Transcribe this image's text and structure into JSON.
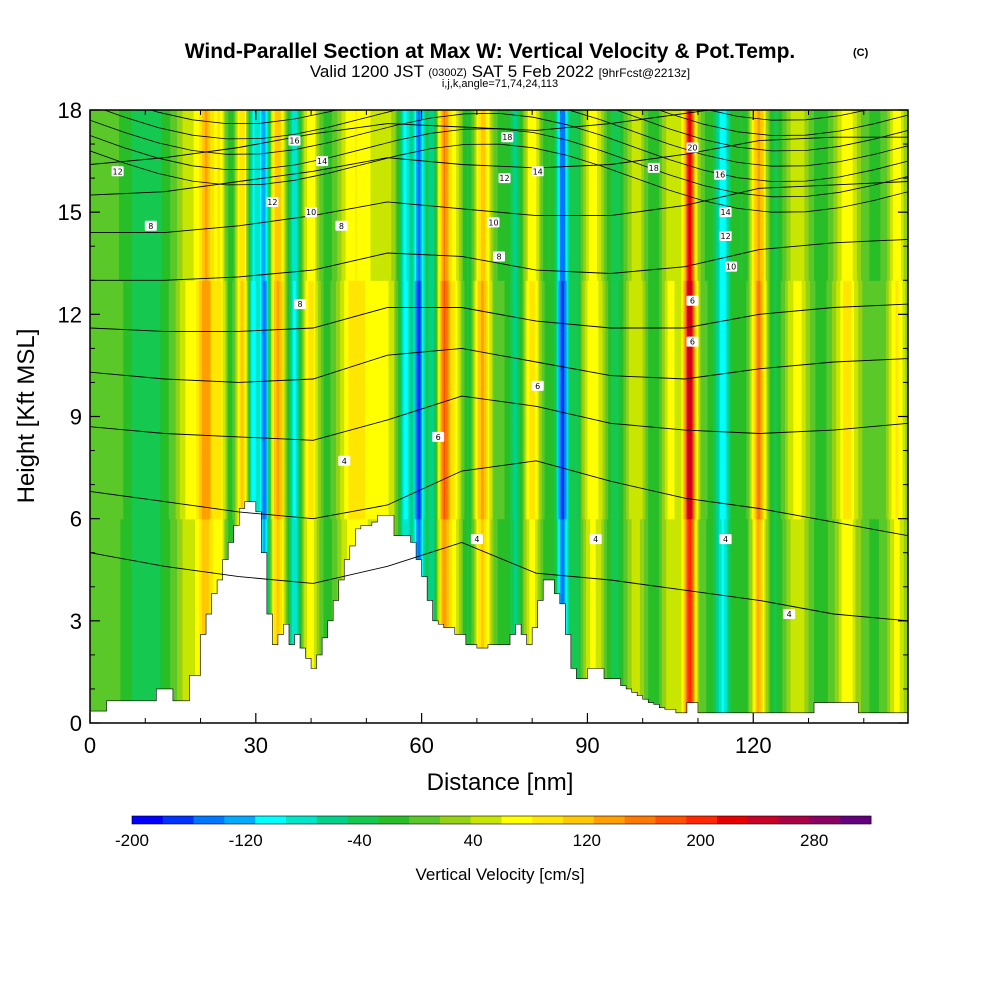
{
  "chart_data": {
    "type": "heatmap",
    "title": "Wind-Parallel Section at Max W: Vertical Velocity & Pot.Temp.",
    "title_mark": "(C)",
    "subtitle": {
      "valid_main": "Valid 1200 JST",
      "utc": "(0300Z)",
      "date": "SAT 5 Feb 2022",
      "fcst": "[9hrFcst@2213z]"
    },
    "subtitle2": "i,j,k,angle=71,74,24,113",
    "xlabel": "Distance [nm]",
    "ylabel": "Height [Kft MSL]",
    "xlim": [
      0,
      148
    ],
    "ylim": [
      0,
      18
    ],
    "x_ticks": [
      0,
      30,
      60,
      90,
      120
    ],
    "y_ticks": [
      0,
      3,
      6,
      9,
      12,
      15,
      18
    ],
    "colorbar": {
      "label": "Vertical Velocity [cm/s]",
      "range": [
        -200,
        320
      ],
      "tick_labels": [
        -200,
        -120,
        -40,
        40,
        120,
        200,
        280
      ],
      "colors": [
        "#0000ff",
        "#0033ff",
        "#0077ff",
        "#00aaff",
        "#00ffff",
        "#00e6c8",
        "#00d28c",
        "#14c850",
        "#28be28",
        "#5ac828",
        "#96d214",
        "#c8e600",
        "#ffff00",
        "#ffe600",
        "#ffc800",
        "#ffa000",
        "#ff7800",
        "#ff5000",
        "#ff2800",
        "#e60000",
        "#c80028",
        "#aa0046",
        "#8c0064",
        "#64007d"
      ]
    },
    "terrain": [
      [
        0,
        0.35
      ],
      [
        3,
        0.65
      ],
      [
        11,
        0.65
      ],
      [
        12,
        1.0
      ],
      [
        14,
        1.0
      ],
      [
        15,
        0.65
      ],
      [
        17,
        0.65
      ],
      [
        18,
        1.4
      ],
      [
        19,
        1.4
      ],
      [
        20,
        2.6
      ],
      [
        21,
        3.2
      ],
      [
        22,
        3.8
      ],
      [
        23,
        4.2
      ],
      [
        24,
        4.8
      ],
      [
        25,
        5.3
      ],
      [
        26,
        5.8
      ],
      [
        27,
        6.3
      ],
      [
        28,
        6.5
      ],
      [
        29,
        6.5
      ],
      [
        30,
        6.2
      ],
      [
        31,
        5.0
      ],
      [
        32,
        3.2
      ],
      [
        33,
        2.3
      ],
      [
        34,
        2.6
      ],
      [
        35,
        2.9
      ],
      [
        36,
        2.3
      ],
      [
        37,
        2.6
      ],
      [
        38,
        2.2
      ],
      [
        39,
        1.9
      ],
      [
        40,
        1.6
      ],
      [
        41,
        2.0
      ],
      [
        42,
        2.5
      ],
      [
        43,
        3.0
      ],
      [
        44,
        3.6
      ],
      [
        45,
        4.2
      ],
      [
        46,
        4.8
      ],
      [
        47,
        5.2
      ],
      [
        48,
        5.7
      ],
      [
        49,
        5.8
      ],
      [
        50,
        5.8
      ],
      [
        51,
        5.9
      ],
      [
        52,
        6.1
      ],
      [
        53,
        6.1
      ],
      [
        54,
        6.1
      ],
      [
        55,
        5.5
      ],
      [
        56,
        5.5
      ],
      [
        57,
        5.5
      ],
      [
        58,
        5.3
      ],
      [
        59,
        4.8
      ],
      [
        60,
        4.3
      ],
      [
        61,
        3.6
      ],
      [
        62,
        3.0
      ],
      [
        63,
        2.9
      ],
      [
        64,
        2.8
      ],
      [
        65,
        2.8
      ],
      [
        66,
        2.6
      ],
      [
        67,
        2.6
      ],
      [
        68,
        2.3
      ],
      [
        69,
        2.3
      ],
      [
        70,
        2.2
      ],
      [
        71,
        2.2
      ],
      [
        72,
        2.3
      ],
      [
        73,
        2.3
      ],
      [
        74,
        2.3
      ],
      [
        75,
        2.3
      ],
      [
        76,
        2.6
      ],
      [
        77,
        2.9
      ],
      [
        78,
        2.6
      ],
      [
        79,
        2.3
      ],
      [
        80,
        2.8
      ],
      [
        81,
        3.6
      ],
      [
        82,
        4.2
      ],
      [
        83,
        4.2
      ],
      [
        84,
        3.8
      ],
      [
        85,
        3.5
      ],
      [
        86,
        2.6
      ],
      [
        87,
        1.6
      ],
      [
        88,
        1.3
      ],
      [
        89,
        1.3
      ],
      [
        90,
        1.6
      ],
      [
        91,
        1.6
      ],
      [
        92,
        1.6
      ],
      [
        93,
        1.3
      ],
      [
        94,
        1.3
      ],
      [
        95,
        1.3
      ],
      [
        96,
        1.1
      ],
      [
        97,
        1.0
      ],
      [
        98,
        0.9
      ],
      [
        99,
        0.8
      ],
      [
        100,
        0.7
      ],
      [
        101,
        0.6
      ],
      [
        102,
        0.55
      ],
      [
        103,
        0.45
      ],
      [
        104,
        0.4
      ],
      [
        105,
        0.4
      ],
      [
        106,
        0.3
      ],
      [
        107,
        0.3
      ],
      [
        108,
        0.6
      ],
      [
        109,
        0.6
      ],
      [
        110,
        0.3
      ],
      [
        120,
        0.3
      ],
      [
        130,
        0.3
      ],
      [
        131,
        0.6
      ],
      [
        138,
        0.6
      ],
      [
        139,
        0.3
      ],
      [
        148,
        0.3
      ]
    ],
    "w_bands": [
      {
        "x": 2,
        "w": -10,
        "sigma": 4
      },
      {
        "x": 9,
        "w": -45,
        "sigma": 3
      },
      {
        "x": 12,
        "w": -35,
        "sigma": 3
      },
      {
        "x": 18,
        "w": 55,
        "sigma": 2
      },
      {
        "x": 21,
        "w": 125,
        "sigma": 1.4
      },
      {
        "x": 23.5,
        "w": 80,
        "sigma": 1.2
      },
      {
        "x": 25.5,
        "w": -40,
        "sigma": 1.5
      },
      {
        "x": 27.5,
        "w": 110,
        "sigma": 1.2
      },
      {
        "x": 29.5,
        "w": -120,
        "sigma": 1.0
      },
      {
        "x": 31.5,
        "w": -160,
        "sigma": 0.9
      },
      {
        "x": 34,
        "w": 120,
        "sigma": 1.2
      },
      {
        "x": 37,
        "w": -110,
        "sigma": 1.1
      },
      {
        "x": 40,
        "w": 80,
        "sigma": 1.4
      },
      {
        "x": 43,
        "w": -30,
        "sigma": 2
      },
      {
        "x": 48,
        "w": 80,
        "sigma": 3
      },
      {
        "x": 53,
        "w": 50,
        "sigma": 2.5
      },
      {
        "x": 57,
        "w": -120,
        "sigma": 1.2
      },
      {
        "x": 59.5,
        "w": -175,
        "sigma": 1.0
      },
      {
        "x": 62,
        "w": -90,
        "sigma": 1.1
      },
      {
        "x": 64,
        "w": 150,
        "sigma": 1.2
      },
      {
        "x": 66,
        "w": 60,
        "sigma": 1.3
      },
      {
        "x": 68.5,
        "w": -50,
        "sigma": 1.3
      },
      {
        "x": 71,
        "w": 115,
        "sigma": 1.5
      },
      {
        "x": 74,
        "w": -20,
        "sigma": 1.5
      },
      {
        "x": 77,
        "w": -70,
        "sigma": 1.3
      },
      {
        "x": 80,
        "w": 75,
        "sigma": 1.4
      },
      {
        "x": 83,
        "w": -40,
        "sigma": 1.3
      },
      {
        "x": 85.5,
        "w": -185,
        "sigma": 1.0
      },
      {
        "x": 88,
        "w": -60,
        "sigma": 1.2
      },
      {
        "x": 91,
        "w": 65,
        "sigma": 2
      },
      {
        "x": 95,
        "w": -60,
        "sigma": 1.6
      },
      {
        "x": 99,
        "w": 45,
        "sigma": 2
      },
      {
        "x": 102,
        "w": -45,
        "sigma": 1.8
      },
      {
        "x": 105,
        "w": 55,
        "sigma": 1.8
      },
      {
        "x": 108.5,
        "w": 230,
        "sigma": 1.1
      },
      {
        "x": 112,
        "w": -20,
        "sigma": 1.2
      },
      {
        "x": 114.5,
        "w": -120,
        "sigma": 1.4
      },
      {
        "x": 118,
        "w": -40,
        "sigma": 1.5
      },
      {
        "x": 121,
        "w": 140,
        "sigma": 1.3
      },
      {
        "x": 124,
        "w": -45,
        "sigma": 1.5
      },
      {
        "x": 128,
        "w": 55,
        "sigma": 2
      },
      {
        "x": 132,
        "w": -30,
        "sigma": 2
      },
      {
        "x": 137,
        "w": 80,
        "sigma": 1.8
      },
      {
        "x": 142,
        "w": -20,
        "sigma": 2
      },
      {
        "x": 146,
        "w": 70,
        "sigma": 1.5
      }
    ],
    "theta_contours": [
      {
        "value": 4,
        "y": [
          5,
          4.6,
          4.3,
          4.1,
          4.6,
          5.3,
          4.4,
          4.2,
          3.9,
          3.6,
          3.2,
          3.0
        ]
      },
      {
        "value": 4,
        "y": [
          6.8,
          6.5,
          6.2,
          6.0,
          6.4,
          7.4,
          7.7,
          7.1,
          6.6,
          6.3,
          5.9,
          5.5
        ]
      },
      {
        "value": 6,
        "y": [
          8.7,
          8.5,
          8.4,
          8.3,
          8.9,
          9.6,
          9.3,
          8.8,
          8.6,
          8.5,
          8.6,
          8.8
        ]
      },
      {
        "value": 6,
        "y": [
          10.3,
          10.1,
          10.0,
          10.1,
          10.8,
          11.0,
          10.6,
          10.2,
          10.1,
          10.4,
          10.6,
          10.7
        ]
      },
      {
        "value": 8,
        "y": [
          11.6,
          11.5,
          11.5,
          11.6,
          12.2,
          12.2,
          11.8,
          11.6,
          11.6,
          12.0,
          12.2,
          12.3
        ]
      },
      {
        "value": 8,
        "y": [
          13.0,
          13.0,
          13.1,
          13.3,
          13.8,
          13.7,
          13.3,
          13.2,
          13.4,
          13.9,
          14.1,
          14.2
        ]
      },
      {
        "value": 8,
        "y": [
          14.4,
          14.4,
          14.6,
          14.9,
          15.3,
          15.1,
          14.9,
          14.9,
          15.2,
          15.7,
          15.8,
          15.9
        ]
      },
      {
        "value": 10,
        "y": [
          15.5,
          15.6,
          15.9,
          16.2,
          16.6,
          16.4,
          16.3,
          16.4,
          16.7,
          17.1,
          17.2,
          17.2
        ]
      },
      {
        "value": 12,
        "y": [
          16.4,
          16.6,
          16.9,
          17.3,
          17.6,
          17.5,
          17.4,
          17.6,
          17.9,
          18.2,
          18.2,
          18.2
        ]
      }
    ],
    "contour_labels": [
      {
        "text": "12",
        "x": 5,
        "y": 16.2
      },
      {
        "text": "8",
        "x": 11,
        "y": 14.6
      },
      {
        "text": "16",
        "x": 37,
        "y": 17.1
      },
      {
        "text": "14",
        "x": 42,
        "y": 16.5
      },
      {
        "text": "12",
        "x": 33,
        "y": 15.3
      },
      {
        "text": "10",
        "x": 40,
        "y": 15.0
      },
      {
        "text": "8",
        "x": 45.5,
        "y": 14.6
      },
      {
        "text": "8",
        "x": 38,
        "y": 12.3
      },
      {
        "text": "18",
        "x": 75.5,
        "y": 17.2
      },
      {
        "text": "14",
        "x": 81,
        "y": 16.2
      },
      {
        "text": "12",
        "x": 75,
        "y": 16.0
      },
      {
        "text": "10",
        "x": 73,
        "y": 14.7
      },
      {
        "text": "8",
        "x": 74,
        "y": 13.7
      },
      {
        "text": "20",
        "x": 109,
        "y": 16.9
      },
      {
        "text": "18",
        "x": 102,
        "y": 16.3
      },
      {
        "text": "16",
        "x": 114,
        "y": 16.1
      },
      {
        "text": "14",
        "x": 115,
        "y": 15.0
      },
      {
        "text": "12",
        "x": 115,
        "y": 14.3
      },
      {
        "text": "10",
        "x": 116,
        "y": 13.4
      },
      {
        "text": "6",
        "x": 109,
        "y": 12.4
      },
      {
        "text": "6",
        "x": 109,
        "y": 11.2
      },
      {
        "text": "6",
        "x": 81,
        "y": 9.9
      },
      {
        "text": "6",
        "x": 63,
        "y": 8.4
      },
      {
        "text": "4",
        "x": 46,
        "y": 7.7
      },
      {
        "text": "4",
        "x": 70,
        "y": 5.4
      },
      {
        "text": "4",
        "x": 91.5,
        "y": 5.4
      },
      {
        "text": "4",
        "x": 115,
        "y": 5.4
      },
      {
        "text": "4",
        "x": 126.5,
        "y": 3.2
      }
    ]
  }
}
